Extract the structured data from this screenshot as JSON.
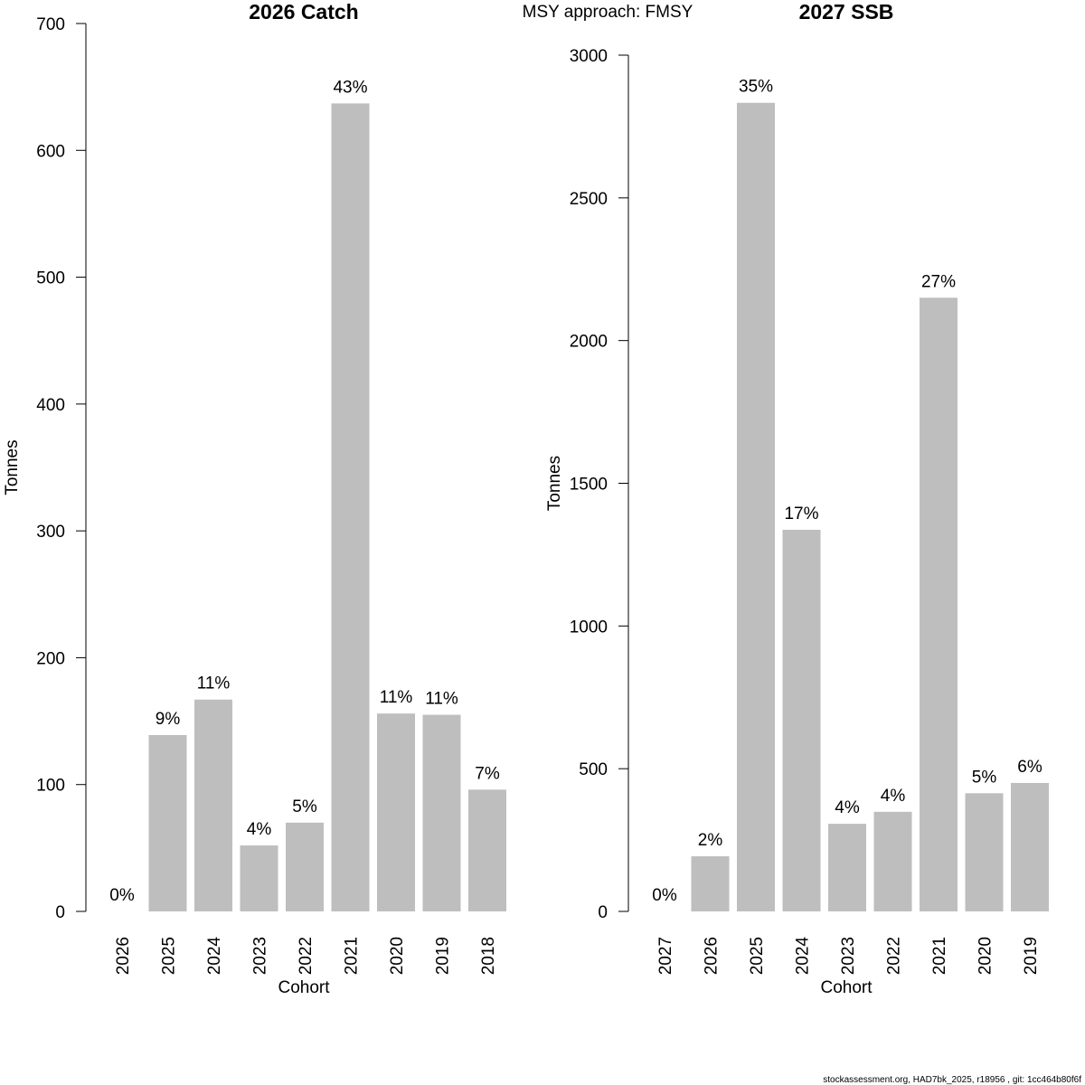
{
  "figure": {
    "supertitle": "MSY approach: FMSY",
    "footer": "stockassessment.org, HAD7bk_2025, r18956 , git: 1cc464b80f6f",
    "bar_color": "#bebebe",
    "axis_color": "#000000"
  },
  "chart_data": [
    {
      "type": "bar",
      "title": "2026 Catch",
      "xlabel": "Cohort",
      "ylabel": "Tonnes",
      "ylim": [
        0,
        700
      ],
      "yticks": [
        0,
        100,
        200,
        300,
        400,
        500,
        600,
        700
      ],
      "ytick_labels": [
        "0",
        "100",
        "200",
        "300",
        "400",
        "500",
        "600",
        "700"
      ],
      "categories": [
        "2026",
        "2025",
        "2024",
        "2023",
        "2022",
        "2021",
        "2020",
        "2019",
        "2018"
      ],
      "values": [
        0,
        139,
        167,
        52,
        70,
        637,
        156,
        155,
        96
      ],
      "data_labels": [
        "0%",
        "9%",
        "11%",
        "4%",
        "5%",
        "43%",
        "11%",
        "11%",
        "7%"
      ]
    },
    {
      "type": "bar",
      "title": "2027 SSB",
      "xlabel": "Cohort",
      "ylabel": "Tonnes",
      "ylim": [
        0,
        3000
      ],
      "yticks": [
        0,
        500,
        1000,
        1500,
        2000,
        2500,
        3000
      ],
      "ytick_labels": [
        "0",
        "500",
        "1000",
        "1500",
        "2000",
        "2500",
        "3000"
      ],
      "categories": [
        "2027",
        "2026",
        "2025",
        "2024",
        "2023",
        "2022",
        "2021",
        "2020",
        "2019"
      ],
      "values": [
        0,
        193,
        2833,
        1337,
        307,
        349,
        2150,
        414,
        450
      ],
      "data_labels": [
        "0%",
        "2%",
        "35%",
        "17%",
        "4%",
        "4%",
        "27%",
        "5%",
        "6%"
      ]
    }
  ]
}
